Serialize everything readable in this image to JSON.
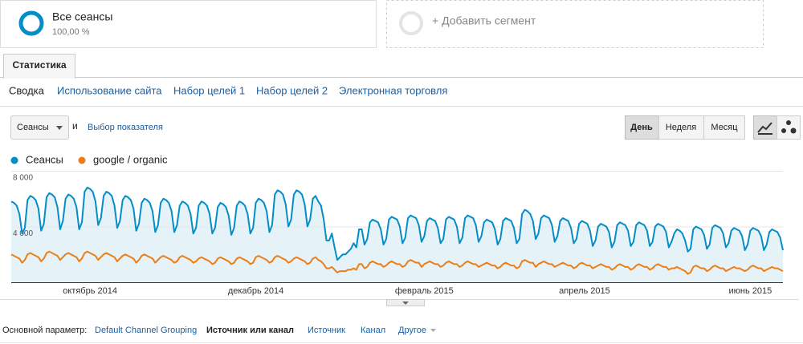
{
  "segments": [
    {
      "name": "Все сеансы",
      "value": "100,00 %"
    },
    {
      "name": "+ Добавить сегмент"
    }
  ],
  "tab": "Статистика",
  "subtabs": [
    "Сводка",
    "Использование сайта",
    "Набор целей 1",
    "Набор целей 2",
    "Электронная торговля"
  ],
  "metric_select": "Сеансы",
  "conjunction": "и",
  "choose_metric": "Выбор показателя",
  "periods": [
    "День",
    "Неделя",
    "Месяц"
  ],
  "chart_data": {
    "type": "line",
    "grid": true,
    "fill_area": true,
    "ylim": [
      0,
      8000
    ],
    "yticks": [
      {
        "value": 4000,
        "label": "4 000"
      },
      {
        "value": 8000,
        "label": "8 000"
      }
    ],
    "xlim": [
      0,
      284
    ],
    "xticks": [
      {
        "value": 29,
        "label": "октябрь 2014"
      },
      {
        "value": 90,
        "label": "декабрь 2014"
      },
      {
        "value": 152,
        "label": "февраль 2015"
      },
      {
        "value": 211,
        "label": "апрель 2015"
      },
      {
        "value": 272,
        "label": "июнь 2015"
      }
    ],
    "series": [
      {
        "name": "Сеансы",
        "color": "#058dc7",
        "values": [
          5800,
          5700,
          5500,
          4900,
          3500,
          3900,
          5900,
          6200,
          6100,
          5900,
          5300,
          3700,
          4200,
          6100,
          6400,
          6300,
          6100,
          5400,
          3800,
          4400,
          6000,
          6300,
          6200,
          6000,
          5400,
          3800,
          4300,
          6500,
          6800,
          6700,
          6500,
          5800,
          4100,
          4600,
          6200,
          6500,
          6400,
          6200,
          5500,
          3900,
          4400,
          5900,
          6200,
          6100,
          5900,
          5300,
          3700,
          4200,
          5700,
          6000,
          5900,
          5700,
          5100,
          3600,
          4100,
          5700,
          6000,
          5900,
          5700,
          5100,
          3600,
          4100,
          5500,
          5800,
          5700,
          5500,
          4900,
          3500,
          3900,
          5500,
          5800,
          5700,
          5500,
          4900,
          3500,
          3900,
          5400,
          5700,
          5600,
          5400,
          4800,
          3400,
          3900,
          5500,
          5800,
          5700,
          5500,
          4900,
          3500,
          3900,
          5700,
          6000,
          5900,
          5700,
          5100,
          3600,
          4100,
          6300,
          6600,
          6500,
          6300,
          5600,
          4000,
          4500,
          6300,
          6600,
          6500,
          6300,
          5600,
          4000,
          4500,
          6000,
          6200,
          5800,
          5500,
          4500,
          3000,
          3000,
          3500,
          2500,
          1600,
          1800,
          2000,
          2000,
          2200,
          2400,
          2800,
          2500,
          3800,
          3800,
          2700,
          3100,
          4300,
          4500,
          4400,
          4300,
          3800,
          2700,
          3100,
          4500,
          4700,
          4600,
          4500,
          4000,
          2800,
          3200,
          4600,
          4800,
          4700,
          4600,
          4100,
          2900,
          3300,
          4400,
          4600,
          4500,
          4400,
          3900,
          2800,
          3100,
          4500,
          4700,
          4600,
          4500,
          4000,
          2800,
          3200,
          4600,
          4800,
          4700,
          4600,
          4100,
          2900,
          3300,
          4300,
          4500,
          4400,
          4300,
          3800,
          2700,
          3100,
          4400,
          4600,
          4500,
          4400,
          3900,
          2800,
          3100,
          4900,
          5200,
          5100,
          4900,
          4400,
          3100,
          3500,
          4600,
          4800,
          4700,
          4600,
          4100,
          2900,
          3300,
          4400,
          4600,
          4500,
          4400,
          3900,
          2800,
          3100,
          4200,
          4400,
          4300,
          4200,
          3700,
          2600,
          3000,
          4000,
          4200,
          4100,
          4000,
          3600,
          2500,
          2900,
          4100,
          4300,
          4200,
          4100,
          3700,
          2600,
          2900,
          4100,
          4300,
          4200,
          4100,
          3700,
          2600,
          2900,
          4000,
          4200,
          4100,
          4000,
          3600,
          2500,
          2900,
          3500,
          3800,
          3700,
          3500,
          3000,
          2200,
          2400,
          3800,
          4000,
          3900,
          3800,
          3400,
          2400,
          2700,
          3900,
          4100,
          4000,
          3900,
          3500,
          2500,
          2800,
          3700,
          3900,
          3800,
          3700,
          3300,
          2300,
          2700,
          3700,
          3900,
          3800,
          3700,
          3300,
          2300,
          2700,
          3600,
          3800,
          3700,
          3600,
          3200,
          2300
        ]
      },
      {
        "name": "google / organic",
        "color": "#ed7e17",
        "values": [
          2000,
          1900,
          1800,
          1700,
          1400,
          1600,
          2000,
          2100,
          2000,
          1900,
          1800,
          1500,
          1700,
          2100,
          2200,
          2100,
          2000,
          1900,
          1600,
          1800,
          2000,
          2100,
          2000,
          1900,
          1800,
          1500,
          1700,
          2100,
          2200,
          2100,
          2000,
          1900,
          1600,
          1800,
          2000,
          2100,
          2000,
          1900,
          1800,
          1500,
          1700,
          1900,
          2000,
          1900,
          1800,
          1700,
          1400,
          1600,
          1900,
          2000,
          1900,
          1800,
          1700,
          1400,
          1600,
          1800,
          1900,
          1800,
          1700,
          1600,
          1400,
          1500,
          1800,
          1900,
          1800,
          1700,
          1600,
          1400,
          1500,
          1700,
          1800,
          1700,
          1600,
          1500,
          1300,
          1400,
          1700,
          1800,
          1700,
          1600,
          1500,
          1300,
          1400,
          1700,
          1800,
          1700,
          1600,
          1500,
          1300,
          1400,
          1800,
          1900,
          1800,
          1700,
          1600,
          1400,
          1500,
          1800,
          1900,
          1800,
          1700,
          1600,
          1400,
          1500,
          1700,
          1800,
          1700,
          1600,
          1500,
          1300,
          1400,
          1700,
          1800,
          1600,
          1500,
          1300,
          1000,
          1000,
          1100,
          900,
          700,
          800,
          800,
          800,
          900,
          900,
          1000,
          900,
          1300,
          1300,
          1000,
          1100,
          1400,
          1500,
          1400,
          1300,
          1300,
          1100,
          1200,
          1400,
          1500,
          1400,
          1300,
          1300,
          1100,
          1200,
          1500,
          1600,
          1500,
          1400,
          1400,
          1100,
          1300,
          1400,
          1500,
          1400,
          1300,
          1300,
          1100,
          1200,
          1400,
          1500,
          1400,
          1300,
          1300,
          1100,
          1200,
          1400,
          1500,
          1400,
          1300,
          1300,
          1100,
          1200,
          1300,
          1400,
          1300,
          1200,
          1200,
          1000,
          1100,
          1300,
          1400,
          1300,
          1200,
          1200,
          1000,
          1100,
          1500,
          1600,
          1500,
          1400,
          1400,
          1100,
          1300,
          1400,
          1500,
          1400,
          1300,
          1300,
          1100,
          1200,
          1300,
          1400,
          1300,
          1200,
          1200,
          1000,
          1100,
          1300,
          1400,
          1300,
          1200,
          1200,
          1000,
          1100,
          1200,
          1300,
          1200,
          1100,
          1100,
          900,
          1000,
          1200,
          1300,
          1200,
          1100,
          1100,
          900,
          1000,
          1200,
          1300,
          1200,
          1100,
          1100,
          900,
          1000,
          1200,
          1300,
          1200,
          1100,
          1100,
          900,
          1000,
          1000,
          1100,
          1000,
          900,
          800,
          600,
          700,
          1100,
          1200,
          1100,
          1000,
          1000,
          800,
          900,
          1100,
          1200,
          1100,
          1000,
          1000,
          800,
          900,
          1000,
          1100,
          1000,
          1000,
          900,
          800,
          900,
          1100,
          1200,
          1100,
          1000,
          1000,
          800,
          900,
          1000,
          1100,
          1000,
          1000,
          900,
          800
        ]
      }
    ]
  },
  "dimension": {
    "label": "Основной параметр:",
    "options": [
      "Default Channel Grouping",
      "Источник или канал",
      "Источник",
      "Канал",
      "Другое"
    ]
  }
}
